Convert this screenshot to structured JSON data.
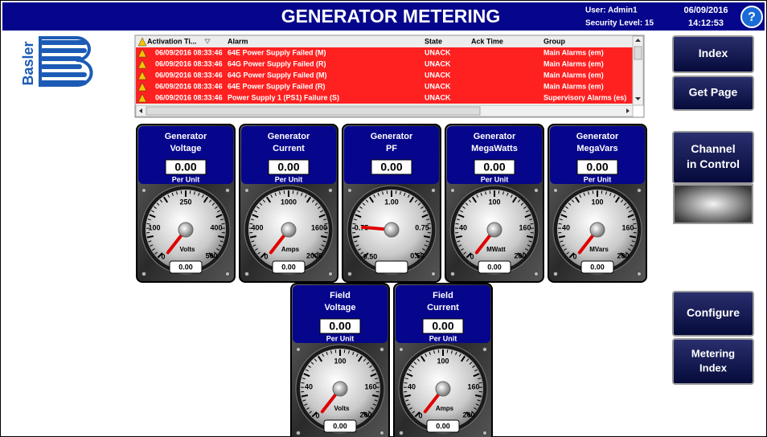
{
  "header": {
    "title": "GENERATOR METERING",
    "user": "User: Admin1",
    "security_level": "Security Level: 15",
    "date": "06/09/2016",
    "time": "14:12:53",
    "help": "?"
  },
  "logo": "Basler",
  "alarm_table": {
    "columns": [
      "Activation Ti...",
      "Alarm",
      "State",
      "Ack Time",
      "Group"
    ],
    "rows": [
      {
        "time": "06/09/2016 08:33:46",
        "alarm": "64E Power Supply Failed (M)",
        "state": "UNACK",
        "group": "Main Alarms (em)"
      },
      {
        "time": "06/09/2016 08:33:46",
        "alarm": "64G Power Supply Failed (R)",
        "state": "UNACK",
        "group": "Main Alarms (em)"
      },
      {
        "time": "06/09/2016 08:33:46",
        "alarm": "64G Power Supply Failed (M)",
        "state": "UNACK",
        "group": "Main Alarms (em)"
      },
      {
        "time": "06/09/2016 08:33:46",
        "alarm": "64E Power Supply Failed (R)",
        "state": "UNACK",
        "group": "Main Alarms (em)"
      },
      {
        "time": "06/09/2016 08:33:46",
        "alarm": "Power Supply 1 (PS1) Failure (S)",
        "state": "UNACK",
        "group": "Supervisory Alarms (es)"
      }
    ]
  },
  "buttons": {
    "index": "Index",
    "get_page": "Get Page",
    "channel_in_control": [
      "Channel",
      "in Control"
    ],
    "configure": "Configure",
    "metering_index": [
      "Metering",
      "Index"
    ]
  },
  "gauges": [
    {
      "title": [
        "Generator",
        "Voltage"
      ],
      "value": "0.00",
      "unit_label": "Per Unit",
      "scale": [
        "250",
        "100",
        "400",
        "0",
        "500"
      ],
      "unit": "Volts",
      "readout": "0.00"
    },
    {
      "title": [
        "Generator",
        "Current"
      ],
      "value": "0.00",
      "unit_label": "Per Unit",
      "scale": [
        "1000",
        "400",
        "1600",
        "0",
        "2000"
      ],
      "unit": "Amps",
      "readout": "0.00"
    },
    {
      "title": [
        "Generator",
        "PF"
      ],
      "value": "0.00",
      "scale": [
        "1.00",
        "-0.75",
        "0.75",
        "-0.50",
        "0.50"
      ]
    },
    {
      "title": [
        "Generator",
        "MegaWatts"
      ],
      "value": "0.00",
      "unit_label": "Per Unit",
      "scale": [
        "100",
        "40",
        "160",
        "0",
        "200"
      ],
      "unit": "MWatt",
      "readout": "0.00"
    },
    {
      "title": [
        "Generator",
        "MegaVars"
      ],
      "value": "0.00",
      "unit_label": "Per Unit",
      "scale": [
        "100",
        "40",
        "160",
        "0",
        "200"
      ],
      "unit": "MVars",
      "readout": "0.00"
    },
    {
      "title": [
        "Field",
        "Voltage"
      ],
      "value": "0.00",
      "unit_label": "Per Unit",
      "scale": [
        "100",
        "40",
        "160",
        "0",
        "200"
      ],
      "unit": "Volts",
      "readout": "0.00"
    },
    {
      "title": [
        "Field",
        "Current"
      ],
      "value": "0.00",
      "unit_label": "Per Unit",
      "scale": [
        "100",
        "40",
        "160",
        "0",
        "200"
      ],
      "unit": "Amps",
      "readout": "0.00"
    }
  ]
}
